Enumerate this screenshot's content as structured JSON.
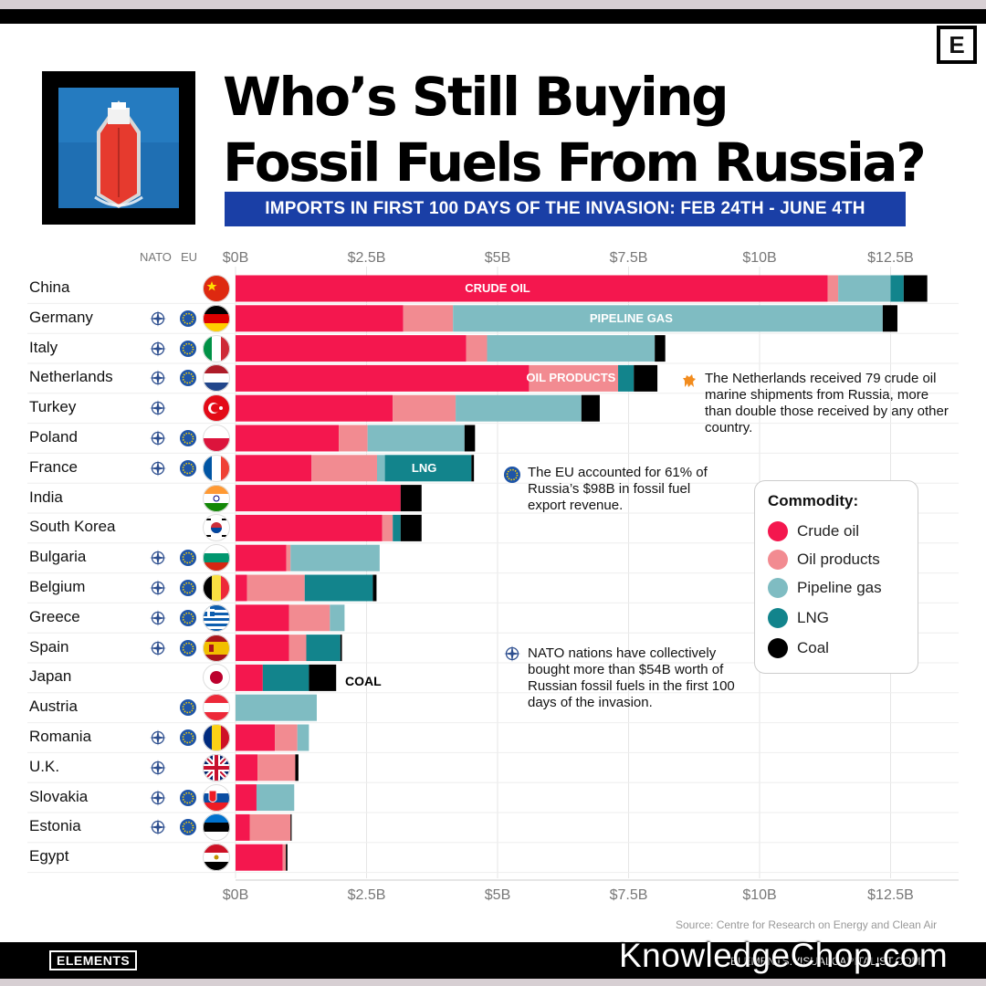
{
  "title_lines": [
    "Who’s Still Buying",
    "Fossil Fuels From Russia?"
  ],
  "subtitle": "IMPORTS IN FIRST 100 DAYS OF THE INVASION:  FEB 24TH - JUNE 4TH",
  "header_nato": "NATO",
  "header_eu": "EU",
  "brand_letter": "E",
  "colors": {
    "crude_oil": "#f4174e",
    "oil_products": "#f28b91",
    "pipeline_gas": "#7fbcc2",
    "lng": "#12848c",
    "coal": "#000000",
    "subtitle_bg": "#1a3fa6"
  },
  "chart_data": {
    "type": "bar",
    "orientation": "horizontal",
    "stacked": true,
    "categories": [
      "China",
      "Germany",
      "Italy",
      "Netherlands",
      "Turkey",
      "Poland",
      "France",
      "India",
      "South Korea",
      "Bulgaria",
      "Belgium",
      "Greece",
      "Spain",
      "Japan",
      "Austria",
      "Romania",
      "U.K.",
      "Slovakia",
      "Estonia",
      "Egypt"
    ],
    "nato": [
      false,
      true,
      true,
      true,
      true,
      true,
      true,
      false,
      false,
      true,
      true,
      true,
      true,
      false,
      false,
      true,
      true,
      true,
      true,
      false
    ],
    "eu": [
      false,
      true,
      true,
      true,
      false,
      true,
      true,
      false,
      false,
      true,
      true,
      true,
      true,
      false,
      true,
      true,
      false,
      true,
      true,
      false
    ],
    "series": [
      {
        "name": "Crude oil",
        "values": [
          11.3,
          3.2,
          4.4,
          5.6,
          3.0,
          1.97,
          1.45,
          3.15,
          2.8,
          0.97,
          0.22,
          1.02,
          1.02,
          0.52,
          0,
          0.75,
          0.42,
          0.4,
          0.27,
          0.9
        ]
      },
      {
        "name": "Oil products",
        "values": [
          0.2,
          0.95,
          0.4,
          1.7,
          1.2,
          0.55,
          1.25,
          0,
          0.2,
          0.08,
          1.1,
          0.78,
          0.33,
          0,
          0,
          0.43,
          0.72,
          0,
          0.78,
          0.06
        ]
      },
      {
        "name": "Pipeline gas",
        "values": [
          1.0,
          8.2,
          3.2,
          0,
          2.4,
          1.85,
          0.15,
          0,
          0,
          1.7,
          0,
          0.28,
          0,
          0,
          1.55,
          0.22,
          0,
          0.72,
          0,
          0
        ]
      },
      {
        "name": "LNG",
        "values": [
          0.25,
          0,
          0,
          0.3,
          0,
          0,
          1.65,
          0,
          0.15,
          0,
          1.3,
          0,
          0.65,
          0.88,
          0,
          0,
          0,
          0,
          0,
          0
        ]
      },
      {
        "name": "Coal",
        "values": [
          0.45,
          0.28,
          0.2,
          0.45,
          0.35,
          0.2,
          0.05,
          0.4,
          0.4,
          0,
          0.07,
          0,
          0.03,
          0.52,
          0,
          0,
          0.06,
          0,
          0.02,
          0.03
        ]
      }
    ],
    "xticks": [
      "$0B",
      "$2.5B",
      "$5B",
      "$7.5B",
      "$10B",
      "$12.5B"
    ],
    "xtick_values": [
      0,
      2.5,
      5,
      7.5,
      10,
      12.5
    ],
    "xlim": [
      0,
      13.75
    ],
    "bar_labels": [
      {
        "row": 0,
        "text": "CRUDE OIL",
        "at": 5
      },
      {
        "row": 1,
        "text": "PIPELINE GAS",
        "at": 7.55
      },
      {
        "row": 3,
        "text": "OIL PRODUCTS",
        "at": 6.4
      },
      {
        "row": 6,
        "text": "LNG",
        "at": 3.6
      }
    ],
    "coal_label": "COAL",
    "grid": true,
    "legend_title": "Commodity:",
    "legend_placement": "right",
    "xlabel": "",
    "ylabel": ""
  },
  "notes": {
    "netherlands": "The Netherlands received 79 crude oil marine shipments from Russia, more than double those received by any other country.",
    "eu": "The EU accounted for 61% of Russia’s $98B in fossil fuel export revenue.",
    "nato": "NATO nations have collectively bought more than $54B worth of Russian fossil fuels in the first 100 days of the invasion."
  },
  "source": "Source: Centre for Research on Energy and Clean Air",
  "brand": "ELEMENTS",
  "site": "ELEMENTS.VISUALCAPITALIST.COM",
  "watermark": "KnowledgeChop.com"
}
